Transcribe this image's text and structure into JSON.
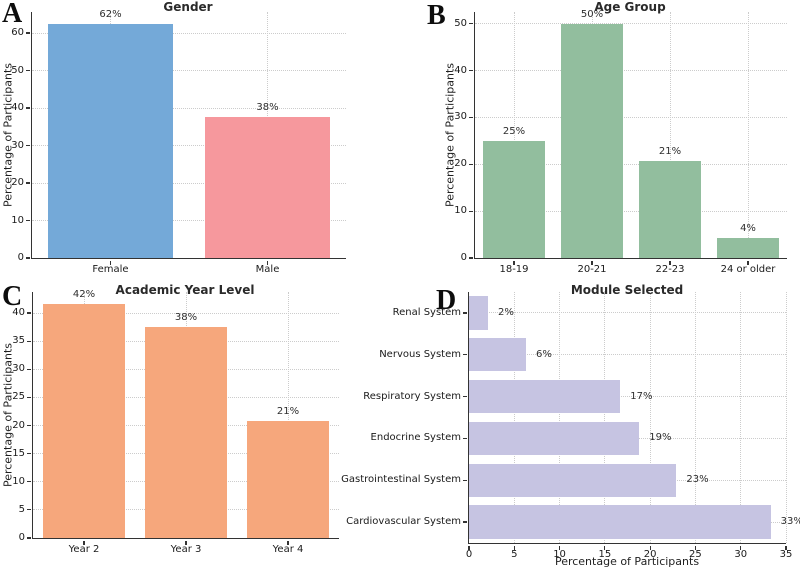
{
  "figure": {
    "background": "#ffffff"
  },
  "chart_data": [
    {
      "id": "a",
      "panel_label": "A",
      "type": "bar",
      "orientation": "vertical",
      "title": "Gender",
      "ylabel": "Percentage of Participants",
      "categories": [
        "Female",
        "Male"
      ],
      "values": [
        62.5,
        37.5
      ],
      "value_labels": [
        "62%",
        "38%"
      ],
      "bar_colors": [
        "#74a9d8",
        "#f6989d"
      ],
      "yticks": [
        0,
        10,
        20,
        30,
        40,
        50,
        60
      ],
      "ylim": [
        0,
        65.6
      ],
      "grid": true
    },
    {
      "id": "b",
      "panel_label": "B",
      "type": "bar",
      "orientation": "vertical",
      "title": "Age Group",
      "ylabel": "Percentage of Participants",
      "categories": [
        "18-19",
        "20-21",
        "22-23",
        "24 or older"
      ],
      "values": [
        25,
        50,
        20.8,
        4.2
      ],
      "value_labels": [
        "25%",
        "50%",
        "21%",
        "4%"
      ],
      "bar_colors": [
        "#92be9e"
      ],
      "yticks": [
        0,
        10,
        20,
        30,
        40,
        50
      ],
      "ylim": [
        0,
        52.5
      ],
      "grid": true
    },
    {
      "id": "c",
      "panel_label": "C",
      "type": "bar",
      "orientation": "vertical",
      "title": "Academic Year Level",
      "ylabel": "Percentage of Participants",
      "categories": [
        "Year 2",
        "Year 3",
        "Year 4"
      ],
      "values": [
        41.7,
        37.5,
        20.8
      ],
      "value_labels": [
        "42%",
        "38%",
        "21%"
      ],
      "bar_colors": [
        "#f6a77c"
      ],
      "yticks": [
        0,
        5,
        10,
        15,
        20,
        25,
        30,
        35,
        40
      ],
      "ylim": [
        0,
        43.75
      ],
      "grid": true
    },
    {
      "id": "d",
      "panel_label": "D",
      "type": "bar",
      "orientation": "horizontal",
      "title": "Module Selected",
      "xlabel": "Percentage of Participants",
      "categories": [
        "Renal System",
        "Nervous System",
        "Respiratory System",
        "Endocrine System",
        "Gastrointestinal System",
        "Cardiovascular System"
      ],
      "values": [
        2.1,
        6.3,
        16.7,
        18.8,
        22.9,
        33.3
      ],
      "value_labels": [
        "2%",
        "6%",
        "17%",
        "19%",
        "23%",
        "33%"
      ],
      "bar_colors": [
        "#c6c4e2"
      ],
      "xticks": [
        0,
        5,
        10,
        15,
        20,
        25,
        30,
        35
      ],
      "xlim": [
        0,
        35
      ],
      "grid": true
    }
  ]
}
